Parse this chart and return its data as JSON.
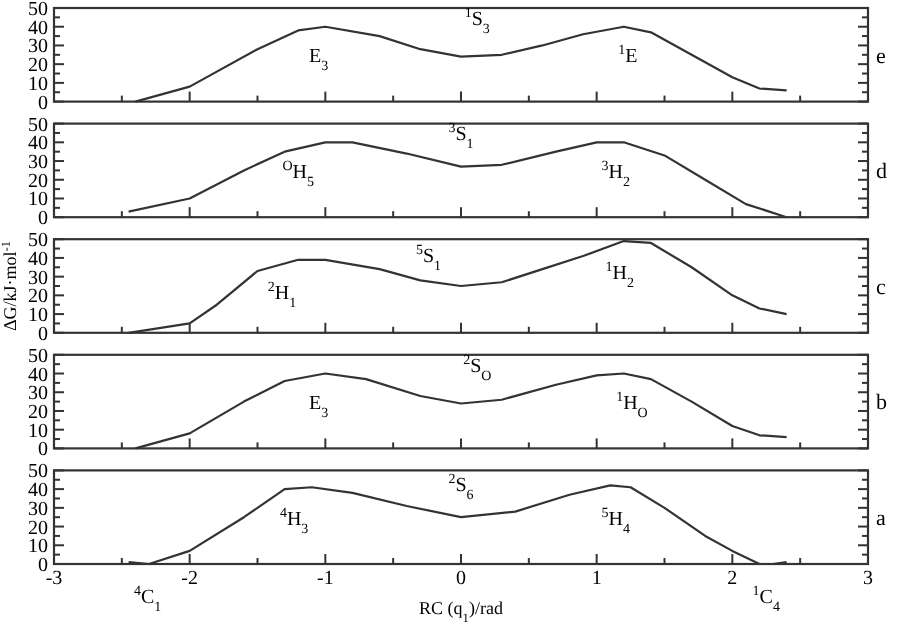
{
  "chart_data": [
    {
      "type": "line",
      "annotations": [
        "e",
        "E$_{3}$",
        "$^{1}$S$_{3}$",
        "$^{1}$E"
      ],
      "x": [
        -2.4,
        -2,
        -1.5,
        -1.2,
        -1,
        -0.6,
        -0.3,
        0,
        0.3,
        0.6,
        0.9,
        1.2,
        1.4,
        1.7,
        2,
        2.2,
        2.4
      ],
      "series": [
        {
          "color": "#333333",
          "values": [
            0,
            8,
            28,
            38,
            40,
            35,
            28,
            24,
            25,
            30,
            36,
            40,
            37,
            25,
            13,
            7,
            6
          ]
        }
      ],
      "xlim": [
        -3,
        3
      ],
      "ylim": [
        0,
        50
      ],
      "xticks": [
        -3,
        -2,
        -1,
        0,
        1,
        2,
        3
      ],
      "yticks": [
        0,
        10,
        20,
        30,
        40,
        50
      ],
      "tick_labels": "y",
      "line_style": "solid"
    },
    {
      "type": "line",
      "annotations": [
        "d",
        "$^{O}$H$_{5}$",
        "$^{3}$S$_{1}$",
        "$^{3}$H$_{2}$"
      ],
      "x": [
        -2.45,
        -2,
        -1.6,
        -1.3,
        -1,
        -0.8,
        -0.4,
        0,
        0.3,
        0.7,
        1,
        1.2,
        1.5,
        1.8,
        2.1,
        2.4
      ],
      "series": [
        {
          "color": "#333333",
          "values": [
            3,
            10,
            25,
            35,
            40,
            40,
            34,
            27,
            28,
            35,
            40,
            40,
            33,
            20,
            7,
            0
          ]
        }
      ],
      "xlim": [
        -3,
        3
      ],
      "ylim": [
        0,
        50
      ],
      "xticks": [
        -3,
        -2,
        -1,
        0,
        1,
        2,
        3
      ],
      "yticks": [
        0,
        10,
        20,
        30,
        40,
        50
      ],
      "tick_labels": "y",
      "line_style": "solid"
    },
    {
      "type": "line",
      "ylabel": "ΔG/kJ·mol$^{-1}$",
      "annotations": [
        "c",
        "$^{2}$H$_{1}$",
        "$^{5}$S$_{1}$",
        "$^{1}$H$_{2}$"
      ],
      "x": [
        -2.45,
        -2,
        -1.8,
        -1.5,
        -1.2,
        -1,
        -0.6,
        -0.3,
        0,
        0.3,
        0.6,
        0.9,
        1.2,
        1.4,
        1.7,
        2,
        2.2,
        2.4
      ],
      "series": [
        {
          "color": "#333333",
          "values": [
            0,
            5,
            15,
            33,
            39,
            39,
            34,
            28,
            25,
            27,
            34,
            41,
            49,
            48,
            35,
            20,
            13,
            10
          ]
        }
      ],
      "xlim": [
        -3,
        3
      ],
      "ylim": [
        0,
        50
      ],
      "xticks": [
        -3,
        -2,
        -1,
        0,
        1,
        2,
        3
      ],
      "yticks": [
        0,
        10,
        20,
        30,
        40,
        50
      ],
      "tick_labels": "y",
      "line_style": "solid"
    },
    {
      "type": "line",
      "annotations": [
        "b",
        "E$_{3}$",
        "$^{2}$S$_{O}$",
        "$^{1}$H$_{O}$"
      ],
      "x": [
        -2.4,
        -2,
        -1.6,
        -1.3,
        -1,
        -0.7,
        -0.3,
        0,
        0.3,
        0.7,
        1,
        1.2,
        1.4,
        1.7,
        2,
        2.2,
        2.4
      ],
      "series": [
        {
          "color": "#333333",
          "values": [
            0,
            8,
            25,
            36,
            40,
            37,
            28,
            24,
            26,
            34,
            39,
            40,
            37,
            25,
            12,
            7,
            6
          ]
        }
      ],
      "xlim": [
        -3,
        3
      ],
      "ylim": [
        0,
        50
      ],
      "xticks": [
        -3,
        -2,
        -1,
        0,
        1,
        2,
        3
      ],
      "yticks": [
        0,
        10,
        20,
        30,
        40,
        50
      ],
      "tick_labels": "y",
      "line_style": "solid"
    },
    {
      "type": "line",
      "xlabel": "RC (q$_{1}$)/rad",
      "annotations": [
        "a",
        "$^{4}$H$_{3}$",
        "$^{2}$S$_{6}$",
        "$^{5}$H$_{4}$",
        "$^{4}$C$_{1}$",
        "$^{1}$C$_{4}$"
      ],
      "x": [
        -2.45,
        -2.3,
        -2,
        -1.6,
        -1.3,
        -1.1,
        -0.8,
        -0.4,
        0,
        0.4,
        0.8,
        1.1,
        1.25,
        1.5,
        1.8,
        2,
        2.2,
        2.3,
        2.4
      ],
      "series": [
        {
          "color": "#333333",
          "values": [
            1,
            0,
            7,
            25,
            40,
            41,
            38,
            31,
            25,
            28,
            37,
            42,
            41,
            30,
            15,
            7,
            0,
            0,
            1
          ]
        }
      ],
      "xlim": [
        -3,
        3
      ],
      "ylim": [
        0,
        50
      ],
      "xticks": [
        -3,
        -2,
        -1,
        0,
        1,
        2,
        3
      ],
      "yticks": [
        0,
        10,
        20,
        30,
        40,
        50
      ],
      "line_style": "solid"
    }
  ]
}
